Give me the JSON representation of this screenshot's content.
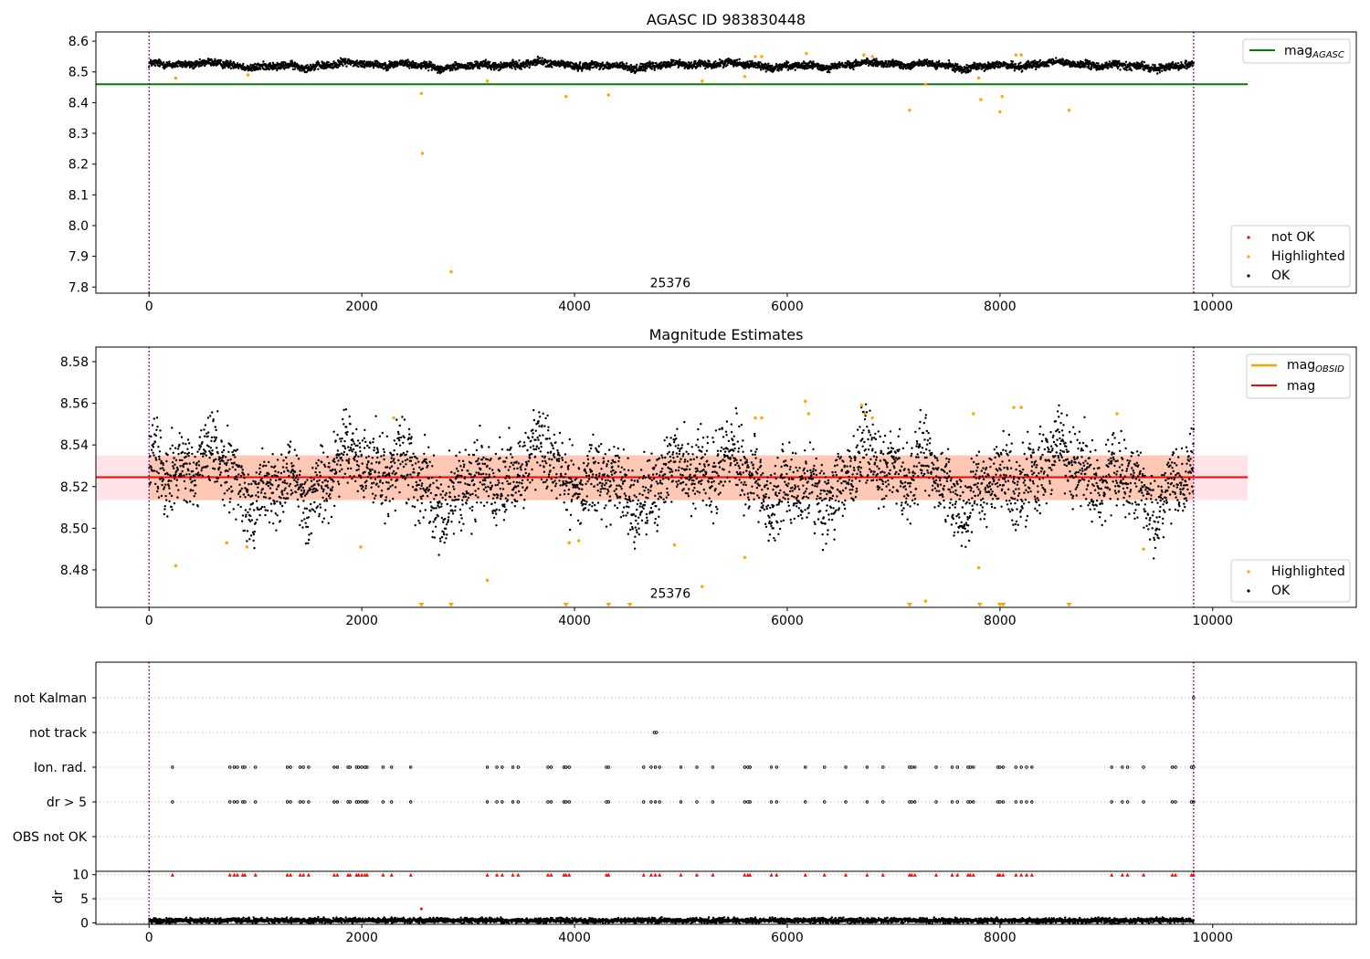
{
  "colors": {
    "ok": "#000000",
    "highlighted": "#ffa500",
    "not_ok": "#ff0000",
    "mag_agasc": "#008000",
    "mag": "#ff0000",
    "mag_obsid": "#ffa500",
    "band_orange": "#ffb38a",
    "band_pink": "#ffc0cb",
    "interval": "#800080",
    "obs_text": "#202020",
    "grid": "#b0b0b0"
  },
  "obs_label": "25376",
  "chart_data": [
    {
      "type": "scatter",
      "title": "AGASC ID 983830448",
      "xlim": [
        -500,
        11350
      ],
      "ylim": [
        7.78,
        8.63
      ],
      "xticks": [
        0,
        2000,
        4000,
        6000,
        8000,
        10000
      ],
      "yticks": [
        7.8,
        7.9,
        8.0,
        8.1,
        8.2,
        8.3,
        8.4,
        8.5,
        8.6
      ],
      "xticklabels": [
        "0",
        "2000",
        "4000",
        "6000",
        "8000",
        "10000"
      ],
      "yticklabels": [
        "7.8",
        "7.9",
        "8.0",
        "8.1",
        "8.2",
        "8.3",
        "8.4",
        "8.5",
        "8.6"
      ],
      "intervals": [
        0,
        9820
      ],
      "annotation": {
        "text": "25376",
        "x": 4900,
        "y": 7.8
      },
      "reference_lines": [
        {
          "legend": "mag",
          "legend_sub": "AGASC",
          "y": 8.46,
          "x_range": [
            -500,
            10330
          ]
        }
      ],
      "legend_lines": {
        "placement": "upper right",
        "entries": [
          {
            "label": "mag",
            "sub": "AGASC"
          }
        ]
      },
      "legend_points": {
        "placement": "lower right",
        "entries": [
          "not OK",
          "Highlighted",
          "OK"
        ]
      },
      "series": [
        {
          "name": "OK",
          "x_range": [
            0,
            9820
          ],
          "baseline": 8.522,
          "noise": 0.006
        },
        {
          "name": "Highlighted",
          "points": [
            [
              250,
              8.48
            ],
            [
              930,
              8.49
            ],
            [
              2560,
              8.43
            ],
            [
              2570,
              8.235
            ],
            [
              2840,
              7.85
            ],
            [
              3180,
              8.47
            ],
            [
              3920,
              8.42
            ],
            [
              4320,
              8.425
            ],
            [
              5200,
              8.47
            ],
            [
              5600,
              8.485
            ],
            [
              5700,
              8.55
            ],
            [
              5760,
              8.55
            ],
            [
              6180,
              8.56
            ],
            [
              6720,
              8.555
            ],
            [
              6800,
              8.55
            ],
            [
              7150,
              8.375
            ],
            [
              7300,
              8.46
            ],
            [
              7800,
              8.48
            ],
            [
              7820,
              8.41
            ],
            [
              8000,
              8.37
            ],
            [
              8020,
              8.42
            ],
            [
              8150,
              8.555
            ],
            [
              8200,
              8.555
            ],
            [
              8650,
              8.375
            ]
          ]
        },
        {
          "name": "not OK",
          "points": []
        }
      ]
    },
    {
      "type": "scatter",
      "title": "Magnitude Estimates",
      "xlim": [
        -500,
        11350
      ],
      "ylim": [
        8.462,
        8.587
      ],
      "xticks": [
        0,
        2000,
        4000,
        6000,
        8000,
        10000
      ],
      "yticks": [
        8.48,
        8.5,
        8.52,
        8.54,
        8.56,
        8.58
      ],
      "xticklabels": [
        "0",
        "2000",
        "4000",
        "6000",
        "8000",
        "10000"
      ],
      "yticklabels": [
        "8.48",
        "8.50",
        "8.52",
        "8.54",
        "8.56",
        "8.58"
      ],
      "intervals": [
        0,
        9820
      ],
      "annotation": {
        "text": "25376",
        "x": 4900,
        "y": 8.4665
      },
      "mag": 8.5245,
      "band": [
        8.5135,
        8.535
      ],
      "band_x_end": 10330,
      "legend_lines": {
        "placement": "upper right",
        "entries": [
          {
            "label": "mag",
            "sub": "OBSID"
          },
          {
            "label": "mag",
            "sub": ""
          }
        ]
      },
      "legend_points": {
        "placement": "lower right",
        "entries": [
          "Highlighted",
          "OK"
        ]
      },
      "series": [
        {
          "name": "OK",
          "x_range": [
            0,
            9820
          ],
          "baseline": 8.524,
          "noise": 0.009
        },
        {
          "name": "Highlighted",
          "points": [
            [
              250,
              8.482
            ],
            [
              730,
              8.493
            ],
            [
              920,
              8.491
            ],
            [
              1990,
              8.491
            ],
            [
              2300,
              8.553
            ],
            [
              3180,
              8.475
            ],
            [
              3950,
              8.493
            ],
            [
              4040,
              8.494
            ],
            [
              4940,
              8.492
            ],
            [
              5200,
              8.472
            ],
            [
              5600,
              8.486
            ],
            [
              5700,
              8.553
            ],
            [
              5760,
              8.553
            ],
            [
              6170,
              8.561
            ],
            [
              6200,
              8.555
            ],
            [
              6700,
              8.559
            ],
            [
              6730,
              8.555
            ],
            [
              6800,
              8.553
            ],
            [
              7300,
              8.465
            ],
            [
              7750,
              8.555
            ],
            [
              7800,
              8.481
            ],
            [
              8130,
              8.558
            ],
            [
              8200,
              8.558
            ],
            [
              9100,
              8.555
            ],
            [
              9350,
              8.49
            ]
          ]
        },
        {
          "name": "Highlighted (below range)",
          "points": [
            2560,
            2840,
            3920,
            4320,
            4520,
            7150,
            7810,
            8000,
            8030,
            8650
          ]
        }
      ]
    },
    {
      "type": "scatter",
      "title": "",
      "xlim": [
        -500,
        11350
      ],
      "xticks": [
        0,
        2000,
        4000,
        6000,
        8000,
        10000
      ],
      "xticklabels": [
        "0",
        "2000",
        "4000",
        "6000",
        "8000",
        "10000"
      ],
      "intervals": [
        0,
        9820
      ],
      "categories": [
        "not Kalman",
        "not track",
        "Ion. rad.",
        "dr > 5",
        "OBS not OK"
      ],
      "series": [
        {
          "name": "not Kalman",
          "points": [
            9820
          ]
        },
        {
          "name": "not track",
          "points": [
            4750,
            4770
          ]
        },
        {
          "name": "Ion. rad.",
          "points": [
            220,
            760,
            800,
            830,
            880,
            900,
            1000,
            1300,
            1330,
            1420,
            1450,
            1500,
            1740,
            1770,
            1870,
            1890,
            1950,
            1970,
            2000,
            2030,
            2050,
            2200,
            2280,
            2460,
            3180,
            3270,
            3320,
            3420,
            3470,
            3750,
            3780,
            3900,
            3920,
            3950,
            4300,
            4320,
            4650,
            4720,
            4760,
            4800,
            5000,
            5150,
            5300,
            5600,
            5630,
            5650,
            5850,
            5900,
            6170,
            6350,
            6550,
            6750,
            6900,
            7150,
            7170,
            7200,
            7400,
            7550,
            7600,
            7700,
            7720,
            7750,
            7980,
            8000,
            8030,
            8150,
            8200,
            8250,
            8300,
            9050,
            9150,
            9200,
            9350,
            9620,
            9650,
            9800,
            9820
          ]
        },
        {
          "name": "dr > 5",
          "points": [
            220,
            760,
            800,
            830,
            880,
            900,
            1000,
            1300,
            1330,
            1420,
            1450,
            1500,
            1740,
            1770,
            1870,
            1890,
            1950,
            1970,
            2000,
            2030,
            2050,
            2200,
            2280,
            2460,
            3180,
            3270,
            3320,
            3420,
            3470,
            3750,
            3780,
            3900,
            3920,
            3950,
            4300,
            4320,
            4650,
            4720,
            4760,
            4800,
            5000,
            5150,
            5300,
            5600,
            5630,
            5650,
            5850,
            5900,
            6170,
            6350,
            6550,
            6750,
            6900,
            7150,
            7170,
            7200,
            7400,
            7550,
            7600,
            7700,
            7720,
            7750,
            7980,
            8000,
            8030,
            8150,
            8200,
            8250,
            8300,
            9050,
            9150,
            9200,
            9350,
            9620,
            9650,
            9800,
            9820
          ]
        },
        {
          "name": "OBS not OK",
          "points": []
        }
      ]
    },
    {
      "type": "scatter",
      "title": "",
      "xlim": [
        -500,
        11350
      ],
      "ylim": [
        -0.3,
        10.7
      ],
      "ylabel": "dr",
      "xticks": [
        0,
        2000,
        4000,
        6000,
        8000,
        10000
      ],
      "yticks": [
        0,
        5,
        10
      ],
      "xticklabels": [
        "0",
        "2000",
        "4000",
        "6000",
        "8000",
        "10000"
      ],
      "yticklabels": [
        "0",
        "5",
        "10"
      ],
      "intervals": [
        0,
        9820
      ],
      "series": [
        {
          "name": "OK",
          "x_range": [
            0,
            9820
          ],
          "baseline": 0.5,
          "noise": 0.25
        },
        {
          "name": "not OK",
          "points": [
            [
              2560,
              2.9
            ]
          ]
        },
        {
          "name": "dr > 10 markers",
          "points": [
            220,
            760,
            800,
            830,
            880,
            900,
            1000,
            1300,
            1330,
            1420,
            1450,
            1500,
            1740,
            1770,
            1870,
            1890,
            1950,
            1970,
            2000,
            2030,
            2050,
            2200,
            2280,
            2460,
            3180,
            3270,
            3320,
            3420,
            3470,
            3750,
            3780,
            3900,
            3920,
            3950,
            4300,
            4320,
            4650,
            4720,
            4760,
            4800,
            5000,
            5150,
            5300,
            5600,
            5630,
            5650,
            5850,
            5900,
            6170,
            6350,
            6550,
            6750,
            6900,
            7150,
            7170,
            7200,
            7400,
            7550,
            7600,
            7700,
            7720,
            7750,
            7980,
            8000,
            8030,
            8150,
            8200,
            8250,
            8300,
            9050,
            9150,
            9200,
            9350,
            9620,
            9650,
            9800,
            9820
          ]
        }
      ]
    }
  ]
}
